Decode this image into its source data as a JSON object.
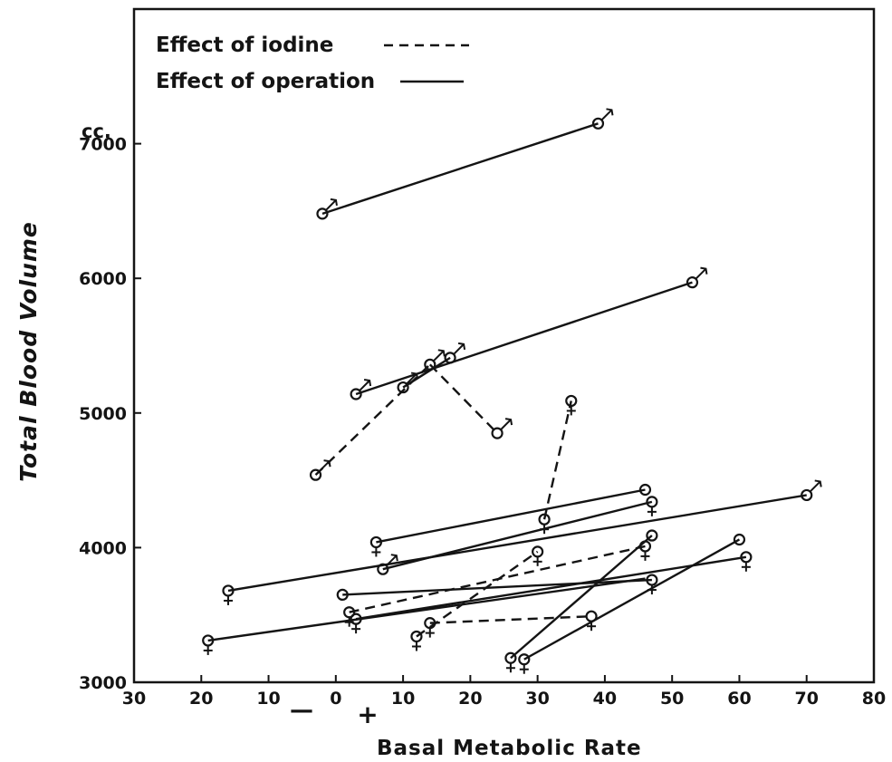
{
  "chart_data": {
    "type": "scatter",
    "xlabel": "Basal Metabolic Rate",
    "ylabel": "Total Blood Volume",
    "y_unit": "cc.",
    "x_sign_minus": "—",
    "x_sign_plus": "+",
    "xlim": [
      -30,
      80
    ],
    "ylim": [
      3000,
      8000
    ],
    "x_ticks": [
      {
        "value": -30,
        "label": "30"
      },
      {
        "value": -20,
        "label": "20"
      },
      {
        "value": -10,
        "label": "10"
      },
      {
        "value": 0,
        "label": "0"
      },
      {
        "value": 10,
        "label": "10"
      },
      {
        "value": 20,
        "label": "20"
      },
      {
        "value": 30,
        "label": "30"
      },
      {
        "value": 40,
        "label": "40"
      },
      {
        "value": 50,
        "label": "50"
      },
      {
        "value": 60,
        "label": "60"
      },
      {
        "value": 70,
        "label": "70"
      },
      {
        "value": 80,
        "label": "80"
      }
    ],
    "y_ticks": [
      {
        "value": 3000,
        "label": "3000"
      },
      {
        "value": 4000,
        "label": "4000"
      },
      {
        "value": 5000,
        "label": "5000"
      },
      {
        "value": 6000,
        "label": "6000"
      },
      {
        "value": 7000,
        "label": "7000"
      }
    ],
    "grid": false,
    "legend_position": "top-left",
    "legend": [
      {
        "label": "Effect of iodine",
        "style": "dashed"
      },
      {
        "label": "Effect of operation",
        "style": "solid"
      }
    ],
    "points": [
      {
        "x": -2,
        "y": 6480,
        "sex": "male"
      },
      {
        "x": 39,
        "y": 7150,
        "sex": "male"
      },
      {
        "x": 53,
        "y": 5970,
        "sex": "male"
      },
      {
        "x": 3,
        "y": 5140,
        "sex": "male"
      },
      {
        "x": 10,
        "y": 5190,
        "sex": "male"
      },
      {
        "x": 14,
        "y": 5360,
        "sex": "male"
      },
      {
        "x": 17,
        "y": 5410,
        "sex": "male"
      },
      {
        "x": 24,
        "y": 4850,
        "sex": "male"
      },
      {
        "x": -3,
        "y": 4540,
        "sex": "male"
      },
      {
        "x": 35,
        "y": 5090,
        "sex": "female"
      },
      {
        "x": 46,
        "y": 4430,
        "sex": "none"
      },
      {
        "x": 47,
        "y": 4340,
        "sex": "female"
      },
      {
        "x": 70,
        "y": 4390,
        "sex": "male"
      },
      {
        "x": 6,
        "y": 4040,
        "sex": "female"
      },
      {
        "x": 31,
        "y": 4210,
        "sex": "female"
      },
      {
        "x": 7,
        "y": 3840,
        "sex": "male"
      },
      {
        "x": -16,
        "y": 3680,
        "sex": "female"
      },
      {
        "x": 30,
        "y": 3970,
        "sex": "female"
      },
      {
        "x": 46,
        "y": 4010,
        "sex": "female"
      },
      {
        "x": 47,
        "y": 4090,
        "sex": "none"
      },
      {
        "x": 60,
        "y": 4060,
        "sex": "none"
      },
      {
        "x": 61,
        "y": 3930,
        "sex": "female"
      },
      {
        "x": 1,
        "y": 3650,
        "sex": "none"
      },
      {
        "x": 2,
        "y": 3520,
        "sex": "female"
      },
      {
        "x": 3,
        "y": 3470,
        "sex": "female"
      },
      {
        "x": 47,
        "y": 3760,
        "sex": "female"
      },
      {
        "x": -19,
        "y": 3310,
        "sex": "female"
      },
      {
        "x": 12,
        "y": 3340,
        "sex": "female"
      },
      {
        "x": 14,
        "y": 3440,
        "sex": "female"
      },
      {
        "x": 38,
        "y": 3490,
        "sex": "female"
      },
      {
        "x": 26,
        "y": 3180,
        "sex": "female"
      },
      {
        "x": 28,
        "y": 3170,
        "sex": "female"
      }
    ],
    "segments": [
      {
        "from": [
          -2,
          6480
        ],
        "to": [
          39,
          7150
        ],
        "style": "solid"
      },
      {
        "from": [
          3,
          5140
        ],
        "to": [
          53,
          5970
        ],
        "style": "solid"
      },
      {
        "from": [
          10,
          5190
        ],
        "to": [
          17,
          5410
        ],
        "style": "solid"
      },
      {
        "from": [
          -3,
          4540
        ],
        "to": [
          14,
          5360
        ],
        "style": "dashed"
      },
      {
        "from": [
          14,
          5360
        ],
        "to": [
          24,
          4850
        ],
        "style": "dashed"
      },
      {
        "from": [
          31,
          4210
        ],
        "to": [
          35,
          5090
        ],
        "style": "dashed"
      },
      {
        "from": [
          6,
          4040
        ],
        "to": [
          46,
          4430
        ],
        "style": "solid"
      },
      {
        "from": [
          7,
          3840
        ],
        "to": [
          47,
          4340
        ],
        "style": "solid"
      },
      {
        "from": [
          -16,
          3680
        ],
        "to": [
          70,
          4390
        ],
        "style": "solid"
      },
      {
        "from": [
          1,
          3650
        ],
        "to": [
          47,
          3760
        ],
        "style": "solid"
      },
      {
        "from": [
          2,
          3520
        ],
        "to": [
          46,
          4010
        ],
        "style": "dashed"
      },
      {
        "from": [
          3,
          3470
        ],
        "to": [
          61,
          3930
        ],
        "style": "solid"
      },
      {
        "from": [
          12,
          3340
        ],
        "to": [
          30,
          3970
        ],
        "style": "dashed"
      },
      {
        "from": [
          14,
          3440
        ],
        "to": [
          38,
          3490
        ],
        "style": "dashed"
      },
      {
        "from": [
          -19,
          3310
        ],
        "to": [
          46,
          3770
        ],
        "style": "solid"
      },
      {
        "from": [
          26,
          3180
        ],
        "to": [
          47,
          4090
        ],
        "style": "solid"
      },
      {
        "from": [
          28,
          3170
        ],
        "to": [
          60,
          4060
        ],
        "style": "solid"
      }
    ]
  }
}
